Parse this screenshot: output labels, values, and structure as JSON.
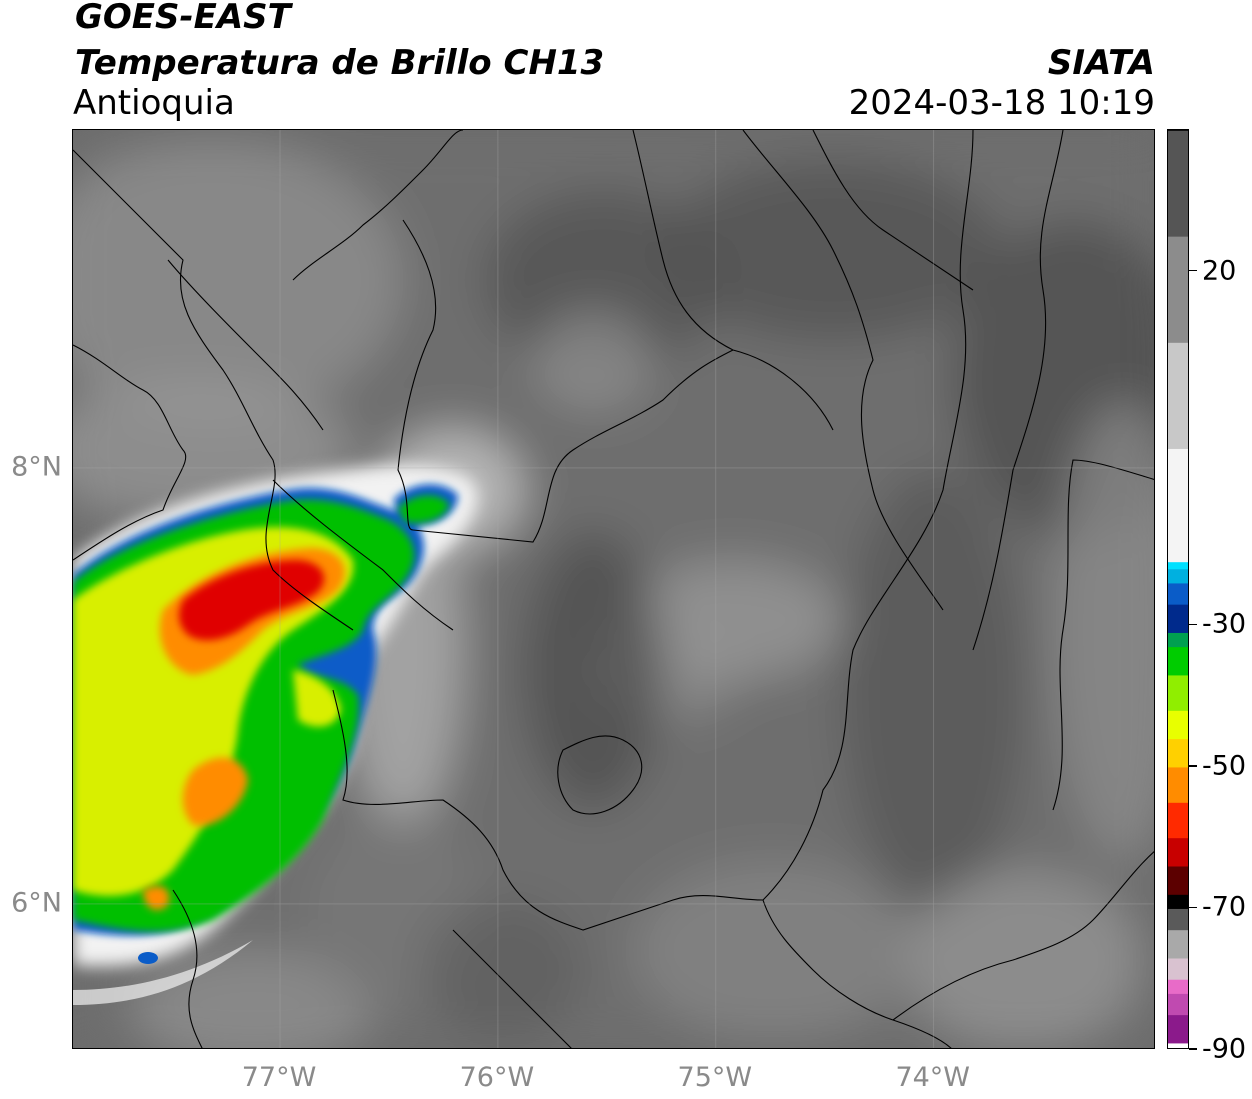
{
  "header": {
    "satellite": "GOES-EAST",
    "product": "Temperatura de Brillo CH13",
    "region": "Antioquia",
    "organization": "SIATA",
    "datetime": "2024-03-18 10:19"
  },
  "map": {
    "lon_range": [
      -77.95,
      -72.98
    ],
    "lat_range": [
      5.33,
      9.55
    ],
    "x_ticks": [
      {
        "lon": -77,
        "label": "77°W"
      },
      {
        "lon": -76,
        "label": "76°W"
      },
      {
        "lon": -75,
        "label": "75°W"
      },
      {
        "lon": -74,
        "label": "74°W"
      }
    ],
    "y_ticks": [
      {
        "lat": 8,
        "label": "8°N"
      },
      {
        "lat": 6,
        "label": "6°N"
      }
    ],
    "gridlines": true,
    "background_color": "#6b6b6b",
    "boundary_color": "#000000"
  },
  "colorbar": {
    "orientation": "vertical",
    "range": [
      -90,
      40
    ],
    "ticks": [
      {
        "value": 20,
        "label": "20"
      },
      {
        "value": -30,
        "label": "-30"
      },
      {
        "value": -50,
        "label": "-50"
      },
      {
        "value": -70,
        "label": "-70"
      },
      {
        "value": -90,
        "label": "-90"
      }
    ],
    "stops": [
      {
        "value": -90,
        "color": "#ffffff"
      },
      {
        "value": -89,
        "color": "#8b1a8b"
      },
      {
        "value": -85,
        "color": "#c04ab0"
      },
      {
        "value": -82,
        "color": "#e86bc8"
      },
      {
        "value": -80,
        "color": "#d9c2d0"
      },
      {
        "value": -77,
        "color": "#a9a9a9"
      },
      {
        "value": -73,
        "color": "#5a5a5a"
      },
      {
        "value": -70,
        "color": "#000000"
      },
      {
        "value": -68,
        "color": "#5c0000"
      },
      {
        "value": -64,
        "color": "#c80000"
      },
      {
        "value": -60,
        "color": "#ff2a00"
      },
      {
        "value": -55,
        "color": "#ff8c00"
      },
      {
        "value": -50,
        "color": "#ffd000"
      },
      {
        "value": -46,
        "color": "#e8ff00"
      },
      {
        "value": -42,
        "color": "#90ee00"
      },
      {
        "value": -37,
        "color": "#00cc00"
      },
      {
        "value": -33,
        "color": "#00a050"
      },
      {
        "value": -31,
        "color": "#002a8c"
      },
      {
        "value": -27,
        "color": "#0a5cc8"
      },
      {
        "value": -24,
        "color": "#00b0e0"
      },
      {
        "value": -22,
        "color": "#00e0ff"
      },
      {
        "value": -21,
        "color": "#f4f4f4"
      },
      {
        "value": -5,
        "color": "#c8c8c8"
      },
      {
        "value": 10,
        "color": "#8c8c8c"
      },
      {
        "value": 25,
        "color": "#555555"
      },
      {
        "value": 40,
        "color": "#111111"
      }
    ]
  }
}
